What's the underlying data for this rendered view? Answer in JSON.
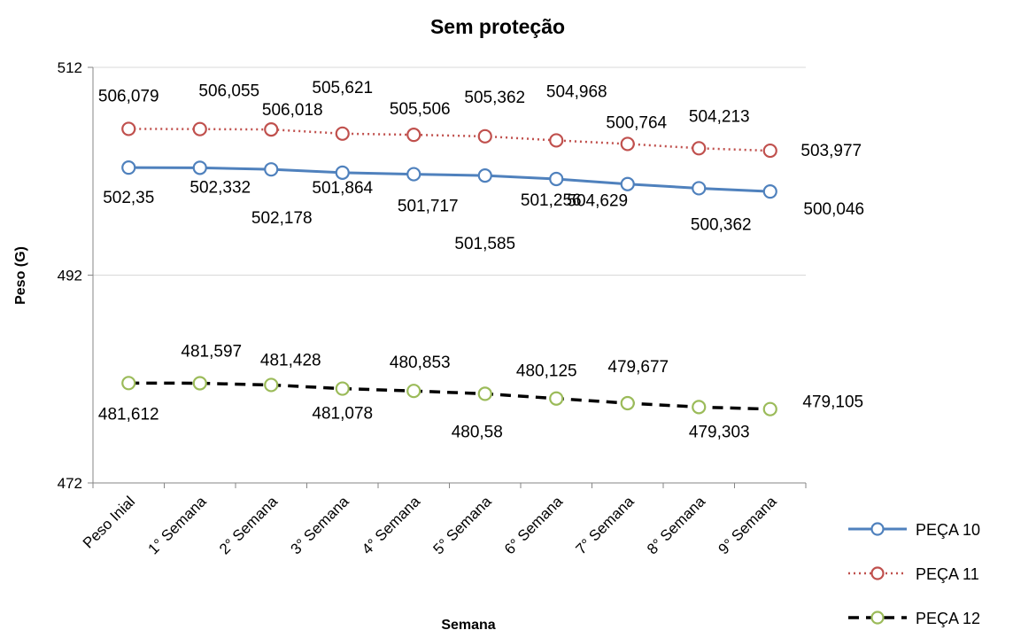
{
  "chart_data": {
    "type": "line",
    "title": "Sem proteção",
    "x_label": "Semana",
    "y_label": "Peso (G)",
    "categories": [
      "Peso Inial",
      "1° Semana",
      "2° Semana",
      "3° Semana",
      "4° Semana",
      "5° Semana",
      "6° Semana",
      "7° Semana",
      "8° Semana",
      "9° Semana"
    ],
    "ylim": [
      472,
      512
    ],
    "yticks": [
      472,
      492,
      512
    ],
    "grid": true,
    "legend": "right",
    "series": [
      {
        "name": "PEÇA 10",
        "color": "#4f81bd",
        "marker_color": "#4f81bd",
        "dash": "solid",
        "values": [
          502.35,
          502.332,
          502.178,
          501.864,
          501.717,
          501.585,
          501.256,
          500.764,
          500.362,
          500.046
        ],
        "value_labels": [
          "502,35",
          "502,332",
          "502,178",
          "501,864",
          "501,717",
          "501,585",
          "501,256",
          "500,764",
          "500,362",
          "500,046"
        ]
      },
      {
        "name": "PEÇA 11",
        "color": "#c0504d",
        "marker_color": "#c0504d",
        "dash": "dotted",
        "values": [
          506.079,
          506.055,
          506.018,
          505.621,
          505.506,
          505.362,
          504.968,
          504.629,
          504.213,
          503.977
        ],
        "value_labels": [
          "506,079",
          "506,055",
          "506,018",
          "505,621",
          "505,506",
          "505,362",
          "504,968",
          "504,629",
          "504,213",
          "503,977"
        ]
      },
      {
        "name": "PEÇA 12",
        "color": "#000000",
        "marker_color": "#9bbb59",
        "dash": "dashed",
        "values": [
          481.612,
          481.597,
          481.428,
          481.078,
          480.853,
          480.58,
          480.125,
          479.677,
          479.303,
          479.105
        ],
        "value_labels": [
          "481,612",
          "481,597",
          "481,428",
          "481,078",
          "480,853",
          "480,58",
          "480,125",
          "479,677",
          "479,303",
          "479,105"
        ]
      }
    ]
  }
}
